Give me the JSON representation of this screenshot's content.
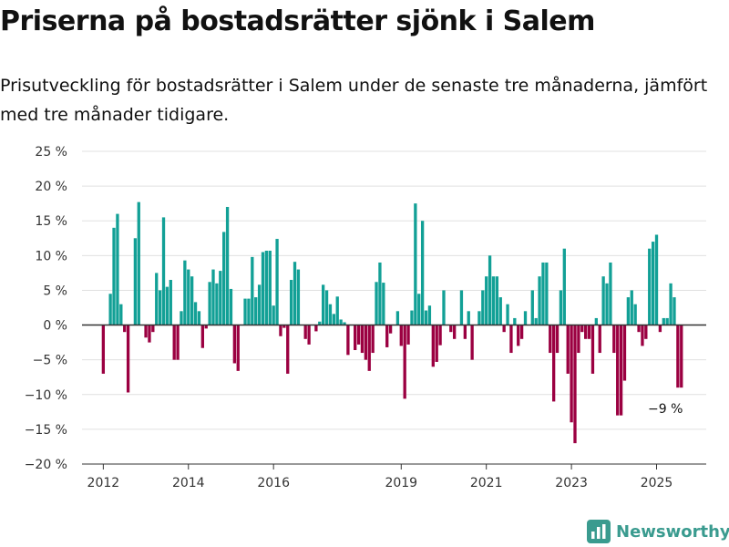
{
  "title": "Priserna på bostadsrätter sjönk i Salem",
  "subtitle": "Prisutveckling för bostadsrätter i Salem under de senaste tre månaderna, jämfört med tre månader tidigare.",
  "brand": "Newsworthy",
  "colors": {
    "positive": "#12a096",
    "negative": "#9b0041",
    "grid": "#e0e0e0",
    "zero_line": "#333333",
    "brand": "#3a9b8f"
  },
  "chart_data": {
    "type": "bar",
    "xlabel": "",
    "ylabel": "",
    "ylim": [
      -20,
      25
    ],
    "y_ticks": [
      {
        "value": 25,
        "label": "25 %"
      },
      {
        "value": 20,
        "label": "20 %"
      },
      {
        "value": 15,
        "label": "15 %"
      },
      {
        "value": 10,
        "label": "10 %"
      },
      {
        "value": 5,
        "label": "5 %"
      },
      {
        "value": 0,
        "label": "0 %"
      },
      {
        "value": -5,
        "label": "−5 %"
      },
      {
        "value": -10,
        "label": "−10 %"
      },
      {
        "value": -15,
        "label": "−15 %"
      },
      {
        "value": -20,
        "label": "−20 %"
      }
    ],
    "x_ticks": [
      {
        "value": "2012-01",
        "label": "2012"
      },
      {
        "value": "2014-01",
        "label": "2014"
      },
      {
        "value": "2016-01",
        "label": "2016"
      },
      {
        "value": "2019-01",
        "label": "2019"
      },
      {
        "value": "2021-01",
        "label": "2021"
      },
      {
        "value": "2023-01",
        "label": "2023"
      },
      {
        "value": "2025-01",
        "label": "2025"
      }
    ],
    "x_range": [
      "2011-07",
      "2026-03"
    ],
    "annotation": {
      "text": "−9 %",
      "x": "2025-04"
    },
    "points": [
      {
        "x": "2012-01",
        "y": -7
      },
      {
        "x": "2012-03",
        "y": 4.5
      },
      {
        "x": "2012-04",
        "y": 14
      },
      {
        "x": "2012-05",
        "y": 16
      },
      {
        "x": "2012-06",
        "y": 3
      },
      {
        "x": "2012-07",
        "y": -1
      },
      {
        "x": "2012-08",
        "y": -9.7
      },
      {
        "x": "2012-10",
        "y": 12.5
      },
      {
        "x": "2012-11",
        "y": 17.7
      },
      {
        "x": "2013-01",
        "y": -1.8
      },
      {
        "x": "2013-02",
        "y": -2.5
      },
      {
        "x": "2013-03",
        "y": -1
      },
      {
        "x": "2013-04",
        "y": 7.5
      },
      {
        "x": "2013-05",
        "y": 5
      },
      {
        "x": "2013-06",
        "y": 15.5
      },
      {
        "x": "2013-07",
        "y": 5.5
      },
      {
        "x": "2013-08",
        "y": 6.5
      },
      {
        "x": "2013-09",
        "y": -5
      },
      {
        "x": "2013-10",
        "y": -5
      },
      {
        "x": "2013-11",
        "y": 2
      },
      {
        "x": "2013-12",
        "y": 9.3
      },
      {
        "x": "2014-01",
        "y": 8
      },
      {
        "x": "2014-02",
        "y": 7
      },
      {
        "x": "2014-03",
        "y": 3.3
      },
      {
        "x": "2014-04",
        "y": 2
      },
      {
        "x": "2014-05",
        "y": -3.3
      },
      {
        "x": "2014-06",
        "y": -0.5
      },
      {
        "x": "2014-07",
        "y": 6.2
      },
      {
        "x": "2014-08",
        "y": 8
      },
      {
        "x": "2014-09",
        "y": 6
      },
      {
        "x": "2014-10",
        "y": 7.8
      },
      {
        "x": "2014-11",
        "y": 13.4
      },
      {
        "x": "2014-12",
        "y": 17
      },
      {
        "x": "2015-01",
        "y": 5.2
      },
      {
        "x": "2015-02",
        "y": -5.5
      },
      {
        "x": "2015-03",
        "y": -6.6
      },
      {
        "x": "2015-05",
        "y": 3.8
      },
      {
        "x": "2015-06",
        "y": 3.8
      },
      {
        "x": "2015-07",
        "y": 9.8
      },
      {
        "x": "2015-08",
        "y": 4
      },
      {
        "x": "2015-09",
        "y": 5.8
      },
      {
        "x": "2015-10",
        "y": 10.5
      },
      {
        "x": "2015-11",
        "y": 10.7
      },
      {
        "x": "2015-12",
        "y": 10.7
      },
      {
        "x": "2016-01",
        "y": 2.8
      },
      {
        "x": "2016-02",
        "y": 12.4
      },
      {
        "x": "2016-03",
        "y": -1.6
      },
      {
        "x": "2016-04",
        "y": -0.4
      },
      {
        "x": "2016-05",
        "y": -7
      },
      {
        "x": "2016-06",
        "y": 6.5
      },
      {
        "x": "2016-07",
        "y": 9.1
      },
      {
        "x": "2016-08",
        "y": 8
      },
      {
        "x": "2016-10",
        "y": -2
      },
      {
        "x": "2016-11",
        "y": -2.8
      },
      {
        "x": "2017-01",
        "y": -0.9
      },
      {
        "x": "2017-02",
        "y": 0.5
      },
      {
        "x": "2017-03",
        "y": 5.8
      },
      {
        "x": "2017-04",
        "y": 5
      },
      {
        "x": "2017-05",
        "y": 3
      },
      {
        "x": "2017-06",
        "y": 1.6
      },
      {
        "x": "2017-07",
        "y": 4.1
      },
      {
        "x": "2017-08",
        "y": 0.8
      },
      {
        "x": "2017-09",
        "y": 0.4
      },
      {
        "x": "2017-10",
        "y": -4.3
      },
      {
        "x": "2017-12",
        "y": -3.6
      },
      {
        "x": "2018-01",
        "y": -2.8
      },
      {
        "x": "2018-02",
        "y": -4
      },
      {
        "x": "2018-03",
        "y": -5
      },
      {
        "x": "2018-04",
        "y": -6.6
      },
      {
        "x": "2018-05",
        "y": -4
      },
      {
        "x": "2018-06",
        "y": 6.2
      },
      {
        "x": "2018-07",
        "y": 9
      },
      {
        "x": "2018-08",
        "y": 6.1
      },
      {
        "x": "2018-09",
        "y": -3.2
      },
      {
        "x": "2018-10",
        "y": -1.2
      },
      {
        "x": "2018-12",
        "y": 2
      },
      {
        "x": "2019-01",
        "y": -3
      },
      {
        "x": "2019-02",
        "y": -10.6
      },
      {
        "x": "2019-03",
        "y": -2.8
      },
      {
        "x": "2019-04",
        "y": 2.1
      },
      {
        "x": "2019-05",
        "y": 17.5
      },
      {
        "x": "2019-06",
        "y": 4.5
      },
      {
        "x": "2019-07",
        "y": 15
      },
      {
        "x": "2019-08",
        "y": 2.1
      },
      {
        "x": "2019-09",
        "y": 2.8
      },
      {
        "x": "2019-10",
        "y": -6
      },
      {
        "x": "2019-11",
        "y": -5.3
      },
      {
        "x": "2019-12",
        "y": -2.9
      },
      {
        "x": "2020-01",
        "y": 5
      },
      {
        "x": "2020-03",
        "y": -1
      },
      {
        "x": "2020-04",
        "y": -2
      },
      {
        "x": "2020-06",
        "y": 5
      },
      {
        "x": "2020-07",
        "y": -2
      },
      {
        "x": "2020-08",
        "y": 2
      },
      {
        "x": "2020-09",
        "y": -5
      },
      {
        "x": "2020-11",
        "y": 2
      },
      {
        "x": "2020-12",
        "y": 5
      },
      {
        "x": "2021-01",
        "y": 7
      },
      {
        "x": "2021-02",
        "y": 10
      },
      {
        "x": "2021-03",
        "y": 7
      },
      {
        "x": "2021-04",
        "y": 7
      },
      {
        "x": "2021-05",
        "y": 4
      },
      {
        "x": "2021-06",
        "y": -1
      },
      {
        "x": "2021-07",
        "y": 3
      },
      {
        "x": "2021-08",
        "y": -4
      },
      {
        "x": "2021-09",
        "y": 1
      },
      {
        "x": "2021-10",
        "y": -3
      },
      {
        "x": "2021-11",
        "y": -2
      },
      {
        "x": "2021-12",
        "y": 2
      },
      {
        "x": "2022-02",
        "y": 5
      },
      {
        "x": "2022-03",
        "y": 1
      },
      {
        "x": "2022-04",
        "y": 7
      },
      {
        "x": "2022-05",
        "y": 9
      },
      {
        "x": "2022-06",
        "y": 9
      },
      {
        "x": "2022-07",
        "y": -4
      },
      {
        "x": "2022-08",
        "y": -11
      },
      {
        "x": "2022-09",
        "y": -4
      },
      {
        "x": "2022-10",
        "y": 5
      },
      {
        "x": "2022-11",
        "y": 11
      },
      {
        "x": "2022-12",
        "y": -7
      },
      {
        "x": "2023-01",
        "y": -14
      },
      {
        "x": "2023-02",
        "y": -17
      },
      {
        "x": "2023-03",
        "y": -4
      },
      {
        "x": "2023-04",
        "y": -1
      },
      {
        "x": "2023-05",
        "y": -2
      },
      {
        "x": "2023-06",
        "y": -2
      },
      {
        "x": "2023-07",
        "y": -7
      },
      {
        "x": "2023-08",
        "y": 1
      },
      {
        "x": "2023-09",
        "y": -4
      },
      {
        "x": "2023-10",
        "y": 7
      },
      {
        "x": "2023-11",
        "y": 6
      },
      {
        "x": "2023-12",
        "y": 9
      },
      {
        "x": "2024-01",
        "y": -4
      },
      {
        "x": "2024-02",
        "y": -13
      },
      {
        "x": "2024-03",
        "y": -13
      },
      {
        "x": "2024-04",
        "y": -8
      },
      {
        "x": "2024-05",
        "y": 4
      },
      {
        "x": "2024-06",
        "y": 5
      },
      {
        "x": "2024-07",
        "y": 3
      },
      {
        "x": "2024-08",
        "y": -1
      },
      {
        "x": "2024-09",
        "y": -3
      },
      {
        "x": "2024-10",
        "y": -2
      },
      {
        "x": "2024-11",
        "y": 11
      },
      {
        "x": "2024-12",
        "y": 12
      },
      {
        "x": "2025-01",
        "y": 13
      },
      {
        "x": "2025-02",
        "y": -1
      },
      {
        "x": "2025-03",
        "y": 1
      },
      {
        "x": "2025-04",
        "y": 1
      },
      {
        "x": "2025-05",
        "y": 6
      },
      {
        "x": "2025-06",
        "y": 4
      },
      {
        "x": "2025-07",
        "y": -9
      },
      {
        "x": "2025-08",
        "y": -9
      }
    ]
  }
}
